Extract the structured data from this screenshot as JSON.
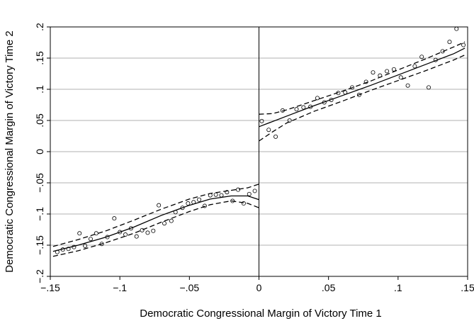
{
  "chart_data": {
    "type": "scatter",
    "title": "",
    "xlabel": "Democratic Congressional Margin of Victory Time 1",
    "ylabel": "Democratic Congressional Margin of Victory Time 2",
    "xlim": [
      -0.15,
      0.15
    ],
    "ylim": [
      -0.2,
      0.2
    ],
    "x_ticks": [
      -0.15,
      -0.1,
      -0.05,
      0,
      0.05,
      0.1,
      0.15
    ],
    "x_tick_labels": [
      "−.15",
      "−.1",
      "−.05",
      "0",
      ".05",
      ".1",
      ".15"
    ],
    "y_ticks": [
      -0.2,
      -0.15,
      -0.1,
      -0.05,
      0,
      0.05,
      0.1,
      0.15,
      0.2
    ],
    "y_tick_labels": [
      "−.2",
      "−.15",
      "−.1",
      "−.05",
      "0",
      ".05",
      ".1",
      ".15",
      ".2"
    ],
    "grid": true,
    "legend": "none",
    "cutoff_x": 0,
    "colors": {
      "fit_line": "#000000",
      "ci_line": "#000000",
      "points": "#000000",
      "grid": "#b0b0b0"
    },
    "series": [
      {
        "type": "scatter",
        "values": [
          [
            -0.145,
            -0.161
          ],
          [
            -0.141,
            -0.157
          ],
          [
            -0.137,
            -0.156
          ],
          [
            -0.133,
            -0.153
          ],
          [
            -0.129,
            -0.131
          ],
          [
            -0.125,
            -0.151
          ],
          [
            -0.121,
            -0.14
          ],
          [
            -0.117,
            -0.131
          ],
          [
            -0.113,
            -0.148
          ],
          [
            -0.109,
            -0.137
          ],
          [
            -0.104,
            -0.107
          ],
          [
            -0.1,
            -0.129
          ],
          [
            -0.096,
            -0.133
          ],
          [
            -0.092,
            -0.123
          ],
          [
            -0.088,
            -0.136
          ],
          [
            -0.084,
            -0.126
          ],
          [
            -0.08,
            -0.13
          ],
          [
            -0.076,
            -0.127
          ],
          [
            -0.072,
            -0.086
          ],
          [
            -0.068,
            -0.115
          ],
          [
            -0.063,
            -0.111
          ],
          [
            -0.06,
            -0.097
          ],
          [
            -0.055,
            -0.09
          ],
          [
            -0.051,
            -0.083
          ],
          [
            -0.047,
            -0.081
          ],
          [
            -0.043,
            -0.077
          ],
          [
            -0.039,
            -0.087
          ],
          [
            -0.035,
            -0.07
          ],
          [
            -0.031,
            -0.069
          ],
          [
            -0.027,
            -0.07
          ],
          [
            -0.023,
            -0.065
          ],
          [
            -0.019,
            -0.079
          ],
          [
            -0.015,
            -0.061
          ],
          [
            -0.011,
            -0.083
          ],
          [
            -0.007,
            -0.068
          ],
          [
            -0.003,
            -0.063
          ],
          [
            0.002,
            0.049
          ],
          [
            0.007,
            0.035
          ],
          [
            0.012,
            0.024
          ],
          [
            0.017,
            0.066
          ],
          [
            0.022,
            0.05
          ],
          [
            0.027,
            0.068
          ],
          [
            0.032,
            0.071
          ],
          [
            0.037,
            0.072
          ],
          [
            0.042,
            0.086
          ],
          [
            0.047,
            0.079
          ],
          [
            0.052,
            0.083
          ],
          [
            0.057,
            0.094
          ],
          [
            0.062,
            0.095
          ],
          [
            0.067,
            0.103
          ],
          [
            0.072,
            0.091
          ],
          [
            0.077,
            0.112
          ],
          [
            0.082,
            0.127
          ],
          [
            0.087,
            0.122
          ],
          [
            0.092,
            0.129
          ],
          [
            0.097,
            0.132
          ],
          [
            0.102,
            0.119
          ],
          [
            0.107,
            0.106
          ],
          [
            0.112,
            0.137
          ],
          [
            0.117,
            0.152
          ],
          [
            0.122,
            0.103
          ],
          [
            0.127,
            0.147
          ],
          [
            0.132,
            0.161
          ],
          [
            0.137,
            0.176
          ],
          [
            0.142,
            0.197
          ],
          [
            0.147,
            0.171
          ]
        ]
      },
      {
        "type": "line",
        "style": "solid",
        "segments": [
          [
            [
              -0.148,
              -0.16
            ],
            [
              -0.13,
              -0.15
            ],
            [
              -0.11,
              -0.137
            ],
            [
              -0.09,
              -0.121
            ],
            [
              -0.07,
              -0.102
            ],
            [
              -0.05,
              -0.086
            ],
            [
              -0.035,
              -0.076
            ],
            [
              -0.02,
              -0.071
            ],
            [
              -0.008,
              -0.071
            ],
            [
              0.0,
              -0.077
            ]
          ],
          [
            [
              0.0,
              0.04
            ],
            [
              0.02,
              0.057
            ],
            [
              0.04,
              0.074
            ],
            [
              0.06,
              0.09
            ],
            [
              0.08,
              0.106
            ],
            [
              0.1,
              0.123
            ],
            [
              0.12,
              0.14
            ],
            [
              0.14,
              0.157
            ],
            [
              0.148,
              0.166
            ]
          ]
        ]
      },
      {
        "type": "line",
        "style": "dashed",
        "segments": [
          [
            [
              -0.148,
              -0.152
            ],
            [
              -0.13,
              -0.141
            ],
            [
              -0.11,
              -0.127
            ],
            [
              -0.09,
              -0.11
            ],
            [
              -0.07,
              -0.092
            ],
            [
              -0.05,
              -0.076
            ],
            [
              -0.035,
              -0.067
            ],
            [
              -0.02,
              -0.062
            ],
            [
              -0.008,
              -0.058
            ],
            [
              0.0,
              -0.052
            ]
          ],
          [
            [
              -0.148,
              -0.168
            ],
            [
              -0.13,
              -0.159
            ],
            [
              -0.11,
              -0.146
            ],
            [
              -0.09,
              -0.131
            ],
            [
              -0.07,
              -0.113
            ],
            [
              -0.05,
              -0.096
            ],
            [
              -0.035,
              -0.085
            ],
            [
              -0.02,
              -0.079
            ],
            [
              -0.008,
              -0.083
            ],
            [
              0.0,
              -0.09
            ]
          ],
          [
            [
              0.0,
              0.06
            ],
            [
              0.01,
              0.061
            ],
            [
              0.02,
              0.067
            ],
            [
              0.04,
              0.082
            ],
            [
              0.06,
              0.097
            ],
            [
              0.08,
              0.113
            ],
            [
              0.1,
              0.131
            ],
            [
              0.12,
              0.149
            ],
            [
              0.14,
              0.168
            ],
            [
              0.148,
              0.176
            ]
          ],
          [
            [
              0.0,
              0.017
            ],
            [
              0.01,
              0.032
            ],
            [
              0.02,
              0.046
            ],
            [
              0.04,
              0.065
            ],
            [
              0.06,
              0.081
            ],
            [
              0.08,
              0.098
            ],
            [
              0.1,
              0.114
            ],
            [
              0.12,
              0.13
            ],
            [
              0.14,
              0.147
            ],
            [
              0.148,
              0.155
            ]
          ]
        ]
      }
    ]
  }
}
